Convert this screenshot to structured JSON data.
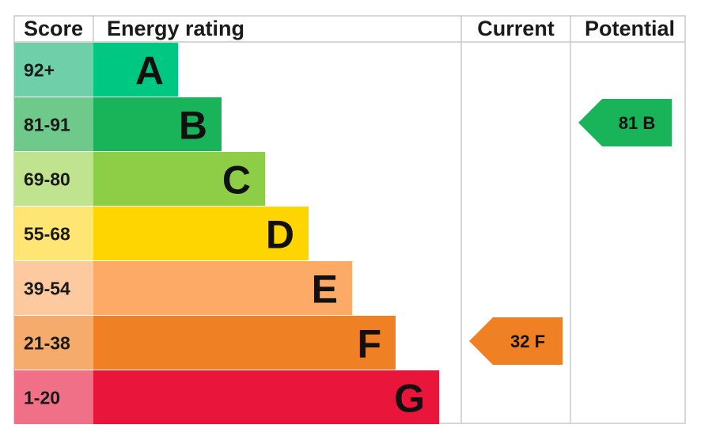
{
  "chart_data": {
    "type": "bar",
    "headers": {
      "score": "Score",
      "rating": "Energy rating",
      "current": "Current",
      "potential": "Potential"
    },
    "bands": [
      {
        "letter": "A",
        "range": "92+",
        "color": "#00c781",
        "score_bg": "#6fcfa9"
      },
      {
        "letter": "B",
        "range": "81-91",
        "color": "#19b459",
        "score_bg": "#6ec98b"
      },
      {
        "letter": "C",
        "range": "69-80",
        "color": "#8dce46",
        "score_bg": "#bfe38e"
      },
      {
        "letter": "D",
        "range": "55-68",
        "color": "#ffd500",
        "score_bg": "#ffe574"
      },
      {
        "letter": "E",
        "range": "39-54",
        "color": "#fcaa65",
        "score_bg": "#fdcaa0"
      },
      {
        "letter": "F",
        "range": "21-38",
        "color": "#ef8023",
        "score_bg": "#f5ab6b"
      },
      {
        "letter": "G",
        "range": "1-20",
        "color": "#e9153b",
        "score_bg": "#f07088"
      }
    ],
    "current": {
      "value": 32,
      "band": "F",
      "label": "32 F"
    },
    "potential": {
      "value": 81,
      "band": "B",
      "label": "81 B"
    }
  }
}
